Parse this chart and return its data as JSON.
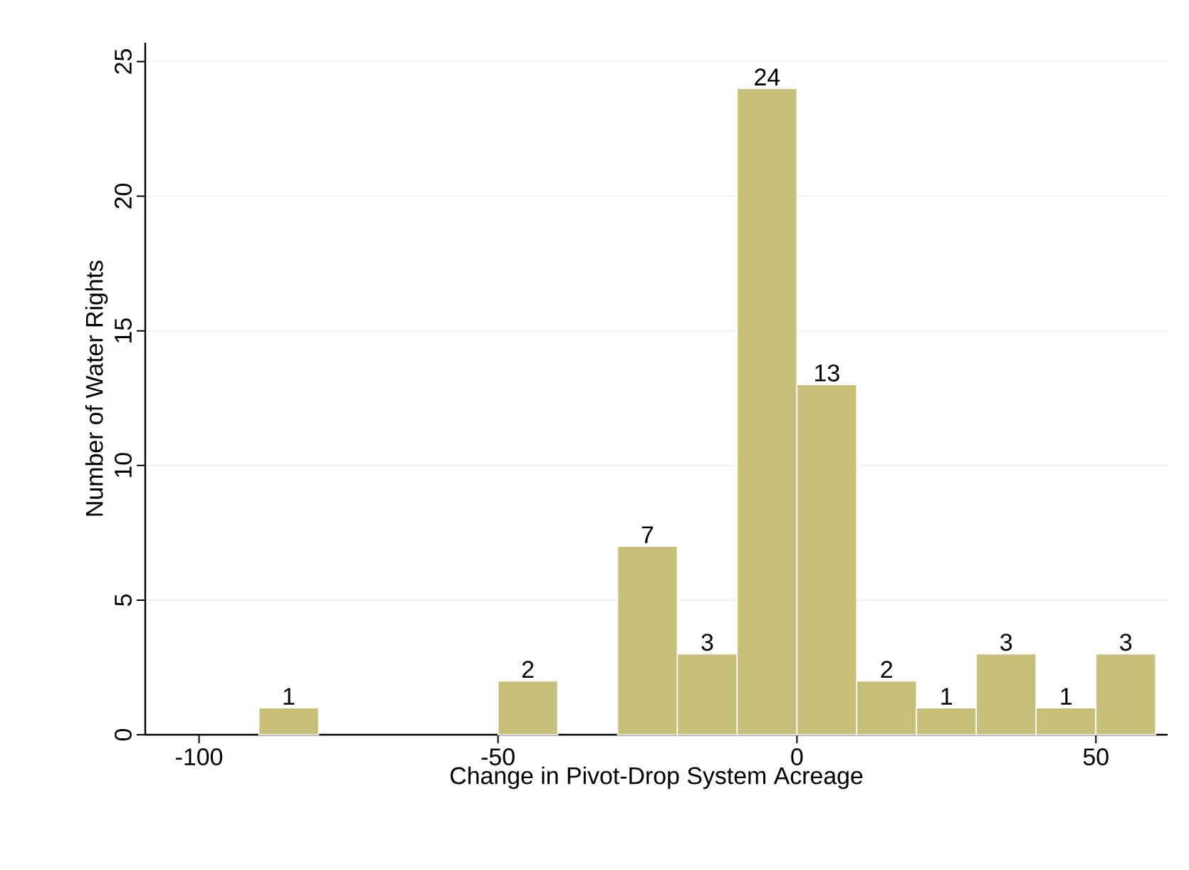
{
  "chart_data": {
    "type": "histogram",
    "xlabel": "Change in Pivot-Drop System Acreage",
    "ylabel": "Number of Water Rights",
    "bins": [
      -90,
      -80,
      -70,
      -60,
      -50,
      -40,
      -30,
      -20,
      -10,
      0,
      10,
      20,
      30,
      40,
      50,
      60
    ],
    "values": [
      1,
      0,
      0,
      0,
      2,
      0,
      7,
      3,
      24,
      13,
      2,
      1,
      3,
      1,
      3
    ],
    "value_labels": [
      "1",
      null,
      null,
      null,
      "2",
      null,
      "7",
      "3",
      "24",
      "13",
      "2",
      "1",
      "3",
      "1",
      "3"
    ],
    "color": "#c8c07a",
    "xlim": [
      -109,
      62
    ],
    "ylim": [
      0,
      25.7
    ],
    "xticks": [
      -100,
      -50,
      0,
      50
    ],
    "yticks": [
      0,
      5,
      10,
      15,
      20,
      25
    ],
    "grid": "y"
  }
}
